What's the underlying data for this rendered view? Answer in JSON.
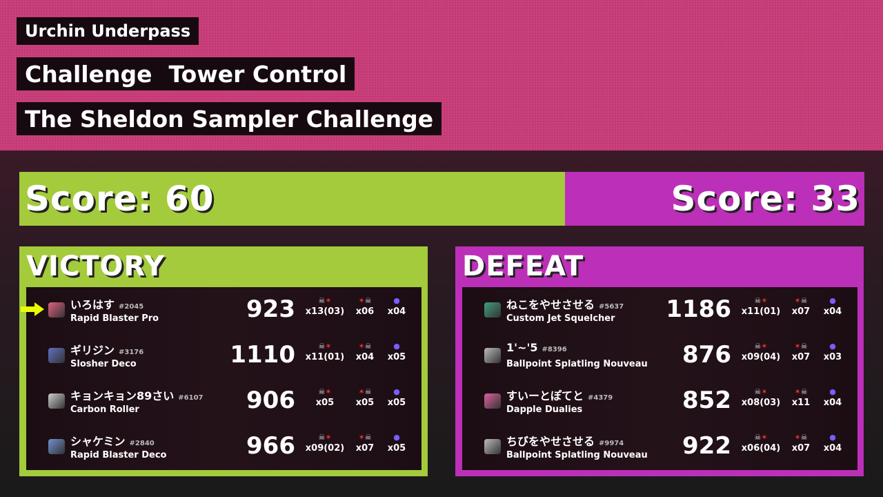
{
  "header": {
    "stage": "Urchin Underpass",
    "mode_type": "Challenge",
    "mode": "Tower Control",
    "challenge": "The Sheldon Sampler Challenge"
  },
  "colors": {
    "alpha": "#a3cb3b",
    "bravo": "#bc2fb8",
    "background": "#c53a76"
  },
  "scores": {
    "alpha": "Score: 60",
    "bravo": "Score: 33"
  },
  "teams": [
    {
      "result": "VICTORY",
      "players": [
        {
          "name": "いろはす",
          "id": "#2045",
          "weapon": "Rapid Blaster Pro",
          "points": "923",
          "kills": "x13(03)",
          "deaths": "x06",
          "specials": "x04",
          "self": true,
          "icon_color": "#e06080"
        },
        {
          "name": "ギリジン",
          "id": "#3176",
          "weapon": "Slosher Deco",
          "points": "1110",
          "kills": "x11(01)",
          "deaths": "x04",
          "specials": "x05",
          "icon_color": "#6070c0"
        },
        {
          "name": "キョンキョン89さい",
          "id": "#6107",
          "weapon": "Carbon Roller",
          "points": "906",
          "kills": "x05",
          "deaths": "x05",
          "specials": "x05",
          "icon_color": "#cccccc"
        },
        {
          "name": "シャケミン",
          "id": "#2840",
          "weapon": "Rapid Blaster Deco",
          "points": "966",
          "kills": "x09(02)",
          "deaths": "x07",
          "specials": "x05",
          "icon_color": "#7090d0"
        }
      ]
    },
    {
      "result": "DEFEAT",
      "players": [
        {
          "name": "ねこをやせさせる",
          "id": "#5637",
          "weapon": "Custom Jet Squelcher",
          "points": "1186",
          "kills": "x11(01)",
          "deaths": "x07",
          "specials": "x04",
          "icon_color": "#40a080"
        },
        {
          "name": "1'~'5",
          "id": "#8396",
          "weapon": "Ballpoint Splatling Nouveau",
          "points": "876",
          "kills": "x09(04)",
          "deaths": "x07",
          "specials": "x03",
          "icon_color": "#bbbbbb"
        },
        {
          "name": "すいーとぽてと",
          "id": "#4379",
          "weapon": "Dapple Dualies",
          "points": "852",
          "kills": "x08(03)",
          "deaths": "x11",
          "specials": "x04",
          "icon_color": "#e060a0"
        },
        {
          "name": "ちびをやせさせる",
          "id": "#9974",
          "weapon": "Ballpoint Splatling Nouveau",
          "points": "922",
          "kills": "x06(04)",
          "deaths": "x07",
          "specials": "x04",
          "icon_color": "#bbbbbb"
        }
      ]
    }
  ]
}
